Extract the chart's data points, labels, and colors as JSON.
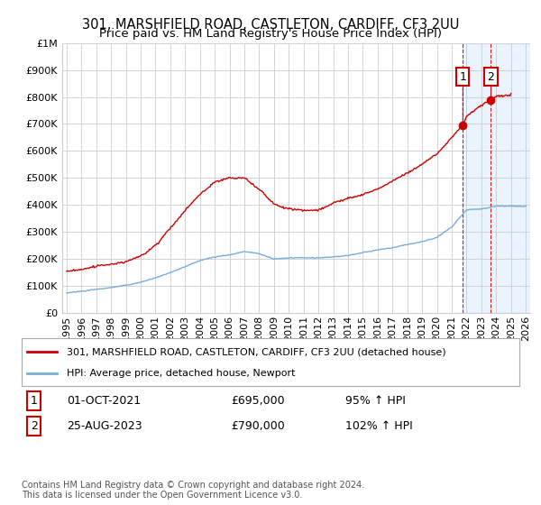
{
  "title": "301, MARSHFIELD ROAD, CASTLETON, CARDIFF, CF3 2UU",
  "subtitle": "Price paid vs. HM Land Registry's House Price Index (HPI)",
  "ylabel_ticks": [
    "£0",
    "£100K",
    "£200K",
    "£300K",
    "£400K",
    "£500K",
    "£600K",
    "£700K",
    "£800K",
    "£900K",
    "£1M"
  ],
  "ytick_values": [
    0,
    100000,
    200000,
    300000,
    400000,
    500000,
    600000,
    700000,
    800000,
    900000,
    1000000
  ],
  "xmin": 1994.7,
  "xmax": 2026.3,
  "ymin": 0,
  "ymax": 1000000,
  "line_color_red": "#cc0000",
  "line_color_blue": "#7aaddb",
  "legend_label_red": "301, MARSHFIELD ROAD, CASTLETON, CARDIFF, CF3 2UU (detached house)",
  "legend_label_blue": "HPI: Average price, detached house, Newport",
  "sale1_date": "01-OCT-2021",
  "sale1_price": "£695,000",
  "sale1_hpi": "95% ↑ HPI",
  "sale1_year": 2021.75,
  "sale1_value": 695000,
  "sale2_date": "25-AUG-2023",
  "sale2_price": "£790,000",
  "sale2_hpi": "102% ↑ HPI",
  "sale2_year": 2023.65,
  "sale2_value": 790000,
  "footer": "Contains HM Land Registry data © Crown copyright and database right 2024.\nThis data is licensed under the Open Government Licence v3.0.",
  "bg_color": "#ffffff",
  "grid_color": "#cccccc",
  "shade_color": "#ddeeff",
  "shade_xmin": 2021.75,
  "shade_xmax": 2026.3,
  "title_fontsize": 10.5,
  "subtitle_fontsize": 9.5,
  "tick_fontsize": 8,
  "legend_fontsize": 8,
  "table_fontsize": 9,
  "footer_fontsize": 7
}
